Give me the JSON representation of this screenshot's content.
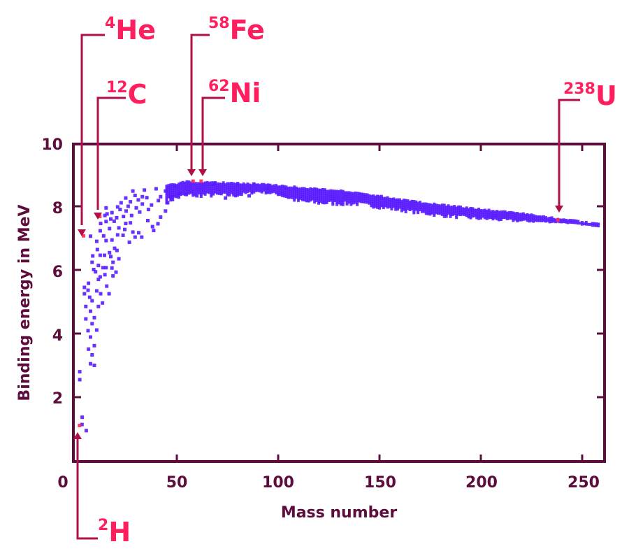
{
  "chart_data": {
    "type": "scatter",
    "xlabel": "Mass number",
    "ylabel": "Binding energy in MeV",
    "xlim": [
      0,
      260
    ],
    "ylim": [
      0,
      10
    ],
    "x_ticks": [
      "0",
      "50",
      "100",
      "150",
      "200",
      "250"
    ],
    "y_ticks": [
      "2",
      "4",
      "6",
      "8",
      "10"
    ],
    "grid": false,
    "colors": {
      "points": "#5a1cff",
      "highlight": "#ff2a5a",
      "axes": "#5c0d3c",
      "arrows": "#b0104a",
      "labels": "#ff1f5e"
    },
    "points": [
      [
        3.3,
        1.37
      ],
      [
        3.2,
        1.14
      ],
      [
        5.3,
        0.95
      ],
      [
        2.1,
        2.8
      ],
      [
        2.1,
        2.55
      ],
      [
        9.3,
        3.0
      ],
      [
        7.4,
        3.05
      ],
      [
        8.2,
        3.33
      ],
      [
        6.4,
        3.51
      ],
      [
        9.3,
        3.62
      ],
      [
        7.4,
        3.89
      ],
      [
        6.2,
        4.09
      ],
      [
        10.5,
        4.11
      ],
      [
        8.2,
        4.31
      ],
      [
        9.3,
        4.5
      ],
      [
        5.1,
        4.46
      ],
      [
        7.4,
        4.7
      ],
      [
        5.1,
        4.85
      ],
      [
        11.3,
        4.85
      ],
      [
        13.3,
        4.96
      ],
      [
        8.2,
        5.03
      ],
      [
        7.0,
        5.14
      ],
      [
        4.4,
        5.25
      ],
      [
        6.2,
        5.36
      ],
      [
        4.4,
        5.45
      ],
      [
        10.5,
        5.34
      ],
      [
        12.4,
        5.25
      ],
      [
        16.6,
        5.25
      ],
      [
        15.4,
        5.49
      ],
      [
        6.4,
        5.58
      ],
      [
        11.3,
        5.7
      ],
      [
        12.2,
        5.78
      ],
      [
        14.5,
        5.85
      ],
      [
        18.5,
        5.81
      ],
      [
        20,
        5.93
      ],
      [
        9.9,
        5.94
      ],
      [
        9.0,
        6.01
      ],
      [
        11.3,
        6.14
      ],
      [
        13.6,
        6.07
      ],
      [
        15.1,
        6.07
      ],
      [
        18,
        6.06
      ],
      [
        8.2,
        6.24
      ],
      [
        18.5,
        6.24
      ],
      [
        21.4,
        6.35
      ],
      [
        17.4,
        6.42
      ],
      [
        8.5,
        6.44
      ],
      [
        12.2,
        6.46
      ],
      [
        14.3,
        6.46
      ],
      [
        16.8,
        6.54
      ],
      [
        10.8,
        6.64
      ],
      [
        19.3,
        6.68
      ],
      [
        20.5,
        6.61
      ],
      [
        10.5,
        6.9
      ],
      [
        15.1,
        6.92
      ],
      [
        18,
        6.94
      ],
      [
        7.4,
        7.06
      ],
      [
        13.9,
        7.07
      ],
      [
        20.8,
        7.1
      ],
      [
        23.5,
        7.09
      ],
      [
        26.6,
        6.87
      ],
      [
        29.4,
        7.03
      ],
      [
        32.7,
        7.03
      ],
      [
        12.2,
        7.23
      ],
      [
        16.8,
        7.3
      ],
      [
        21.4,
        7.32
      ],
      [
        24.3,
        7.27
      ],
      [
        28.3,
        7.19
      ],
      [
        31.2,
        7.17
      ],
      [
        38.6,
        7.24
      ],
      [
        12.4,
        7.46
      ],
      [
        15.1,
        7.52
      ],
      [
        19.1,
        7.53
      ],
      [
        24.8,
        7.46
      ],
      [
        27.1,
        7.48
      ],
      [
        38,
        7.36
      ],
      [
        40.7,
        7.45
      ],
      [
        14.5,
        7.71
      ],
      [
        17.4,
        7.6
      ],
      [
        20.3,
        7.64
      ],
      [
        23.7,
        7.68
      ],
      [
        27.7,
        7.71
      ],
      [
        31.7,
        7.82
      ],
      [
        35.7,
        7.55
      ],
      [
        42,
        7.66
      ],
      [
        15.6,
        7.76
      ],
      [
        15.1,
        7.95
      ],
      [
        20.8,
        7.98
      ],
      [
        22.5,
        8.11
      ],
      [
        27.1,
        8.14
      ],
      [
        33,
        8.07
      ],
      [
        37.5,
        8.04
      ],
      [
        44.4,
        7.85
      ],
      [
        24.8,
        8.26
      ],
      [
        29.4,
        8.34
      ],
      [
        35.2,
        8.27
      ],
      [
        40.9,
        8.18
      ],
      [
        45.5,
        8.11
      ],
      [
        28.3,
        8.48
      ],
      [
        34,
        8.51
      ],
      [
        39.8,
        8.55
      ],
      [
        44.4,
        8.48
      ],
      [
        49,
        8.62
      ],
      [
        51.3,
        8.4
      ],
      [
        54.7,
        8.37
      ],
      [
        59.9,
        8.33
      ],
      [
        74,
        8.26
      ],
      [
        85.7,
        8.33
      ],
      [
        68.5,
        8.71
      ],
      [
        80,
        8.71
      ],
      [
        88,
        8.7
      ],
      [
        95,
        8.55
      ],
      [
        22,
        7.9
      ],
      [
        25,
        7.85
      ],
      [
        30,
        7.95
      ],
      [
        33,
        8.3
      ],
      [
        36,
        7.9
      ],
      [
        26,
        8.0
      ],
      [
        31,
        8.2
      ],
      [
        42,
        8.3
      ],
      [
        47,
        8.3
      ],
      [
        18,
        7.8
      ]
    ],
    "band": {
      "A": [
        45,
        55,
        70,
        80,
        90,
        100,
        110,
        120,
        140,
        160,
        180,
        200,
        220,
        240,
        258
      ],
      "upper": [
        8.65,
        8.78,
        8.75,
        8.72,
        8.7,
        8.66,
        8.6,
        8.55,
        8.44,
        8.22,
        8.05,
        7.92,
        7.78,
        7.6,
        7.45
      ],
      "lower": [
        8.1,
        8.3,
        8.3,
        8.3,
        8.45,
        8.35,
        8.1,
        8.05,
        8.03,
        7.85,
        7.68,
        7.58,
        7.52,
        7.5,
        7.38
      ]
    },
    "highlighted": [
      {
        "nuclide": "H",
        "mass": "2",
        "A": 2,
        "be": 1.11
      },
      {
        "nuclide": "He",
        "mass": "4",
        "A": 4,
        "be": 7.07
      },
      {
        "nuclide": "C",
        "mass": "12",
        "A": 12,
        "be": 7.68
      },
      {
        "nuclide": "Fe",
        "mass": "58",
        "A": 58,
        "be": 8.79
      },
      {
        "nuclide": "Ni",
        "mass": "62",
        "A": 62,
        "be": 8.79
      },
      {
        "nuclide": "U",
        "mass": "238",
        "A": 238,
        "be": 7.57
      }
    ]
  }
}
